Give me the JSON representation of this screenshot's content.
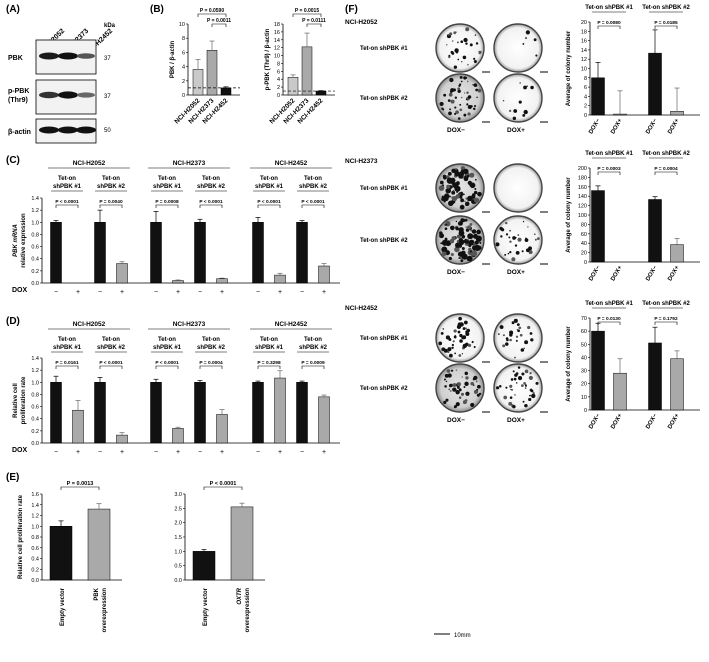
{
  "panels": {
    "A": {
      "label": "(A)",
      "kda": "kDa",
      "cell_lines": [
        "NCI-H2052",
        "NCI-H2373",
        "NCI-H2452"
      ],
      "rows": [
        {
          "label": "PBK",
          "kda": "37"
        },
        {
          "label": "p-PBK",
          "label2": "(Thr9)",
          "kda": "37"
        },
        {
          "label": "β-actin",
          "kda": "50"
        }
      ]
    },
    "B": {
      "label": "(B)"
    },
    "C": {
      "label": "(C)",
      "dox": "DOX",
      "minus": "−",
      "plus": "+"
    },
    "D": {
      "label": "(D)",
      "dox": "DOX",
      "minus": "−",
      "plus": "+"
    },
    "E": {
      "label": "(E)"
    },
    "F": {
      "label": "(F)",
      "scale": "10mm",
      "dox_minus": "DOX−",
      "dox_plus": "DOX+",
      "row_labels": [
        "Tet-on shPBK #1",
        "Tet-on shPBK #2"
      ],
      "cell_lines": [
        "NCI-H2052",
        "NCI-H2373",
        "NCI-H2452"
      ]
    }
  },
  "chart_data": [
    {
      "id": "B1",
      "type": "bar",
      "ylabel": "PBK / β-actin",
      "categories": [
        "NCI-H2052",
        "NCI-H2373",
        "NCI-H2452"
      ],
      "values": [
        3.6,
        6.3,
        1.0
      ],
      "errors": [
        1.4,
        1.3,
        0.15
      ],
      "ylim": [
        0,
        10
      ],
      "yticks": [
        0,
        2,
        4,
        6,
        8,
        10
      ],
      "colors": [
        "#c9c9c9",
        "#a9a9a9",
        "#111111"
      ],
      "reference_line": 1.0,
      "pvalues": [
        {
          "from": 0,
          "to": 2,
          "text": "P = 0.0590",
          "level": 2
        },
        {
          "from": 1,
          "to": 2,
          "text": "P = 0.0011",
          "level": 1
        }
      ]
    },
    {
      "id": "B2",
      "type": "bar",
      "ylabel": "p-PBK (Thr9) / β-actin",
      "categories": [
        "NCI-H2052",
        "NCI-H2373",
        "NCI-H2452"
      ],
      "values": [
        4.5,
        12.2,
        1.0
      ],
      "errors": [
        0.6,
        3.5,
        0.1
      ],
      "ylim": [
        0,
        18
      ],
      "yticks": [
        0,
        2,
        4,
        6,
        8,
        10,
        12,
        14,
        16,
        18
      ],
      "colors": [
        "#c9c9c9",
        "#a9a9a9",
        "#111111"
      ],
      "reference_line": 1.0,
      "pvalues": [
        {
          "from": 0,
          "to": 2,
          "text": "P = 0.0015",
          "level": 2
        },
        {
          "from": 1,
          "to": 2,
          "text": "P = 0.0111",
          "level": 1
        }
      ]
    },
    {
      "id": "C",
      "type": "bar",
      "ylabel": "PBK mRNA relative expression",
      "ylim": [
        0,
        1.4
      ],
      "yticks": [
        0,
        0.2,
        0.4,
        0.6,
        0.8,
        1.0,
        1.2,
        1.4
      ],
      "groups": [
        {
          "cell_line": "NCI-H2052",
          "shRNA": [
            "Tet-on shPBK #1",
            "Tet-on shPBK #2"
          ],
          "values": [
            1.0,
            0.0,
            1.0,
            0.32
          ],
          "errors": [
            0.03,
            0.0,
            0.2,
            0.03
          ],
          "pvalues": [
            "P < 0.0001",
            "P = 0.0040"
          ]
        },
        {
          "cell_line": "NCI-H2373",
          "shRNA": [
            "Tet-on shPBK #1",
            "Tet-on shPBK #2"
          ],
          "values": [
            1.0,
            0.04,
            1.0,
            0.07
          ],
          "errors": [
            0.18,
            0.01,
            0.05,
            0.01
          ],
          "pvalues": [
            "P = 0.0008",
            "P < 0.0001"
          ]
        },
        {
          "cell_line": "NCI-H2452",
          "shRNA": [
            "Tet-on shPBK #1",
            "Tet-on shPBK #2"
          ],
          "values": [
            1.0,
            0.13,
            1.0,
            0.28
          ],
          "errors": [
            0.08,
            0.03,
            0.03,
            0.04
          ],
          "pvalues": [
            "P < 0.0001",
            "P < 0.0001"
          ]
        }
      ]
    },
    {
      "id": "D",
      "type": "bar",
      "ylabel": "Relative cell proliferation rate",
      "ylim": [
        0,
        1.4
      ],
      "yticks": [
        0,
        0.2,
        0.4,
        0.6,
        0.8,
        1.0,
        1.2,
        1.4
      ],
      "groups": [
        {
          "cell_line": "NCI-H2052",
          "shRNA": [
            "Tet-on shPBK #1",
            "Tet-on shPBK #2"
          ],
          "values": [
            1.0,
            0.54,
            1.0,
            0.13
          ],
          "errors": [
            0.1,
            0.16,
            0.08,
            0.04
          ],
          "pvalues": [
            "P = 0.0161",
            "P < 0.0001"
          ]
        },
        {
          "cell_line": "NCI-H2373",
          "shRNA": [
            "Tet-on shPBK #1",
            "Tet-on shPBK #2"
          ],
          "values": [
            1.0,
            0.24,
            1.0,
            0.47
          ],
          "errors": [
            0.05,
            0.02,
            0.03,
            0.08
          ],
          "pvalues": [
            "P < 0.0001",
            "P = 0.0004"
          ]
        },
        {
          "cell_line": "NCI-H2452",
          "shRNA": [
            "Tet-on shPBK #1",
            "Tet-on shPBK #2"
          ],
          "values": [
            1.0,
            1.07,
            1.0,
            0.76
          ],
          "errors": [
            0.02,
            0.12,
            0.02,
            0.03
          ],
          "pvalues": [
            "P = 0.3298",
            "P = 0.0009"
          ]
        }
      ]
    },
    {
      "id": "E1",
      "type": "bar",
      "ylabel": "Relative cell proliferation rate",
      "categories": [
        "Empty vector",
        "PBK overexpression"
      ],
      "values": [
        1.0,
        1.32
      ],
      "errors": [
        0.1,
        0.1
      ],
      "colors": [
        "#111111",
        "#a9a9a9"
      ],
      "ylim": [
        0,
        1.6
      ],
      "yticks": [
        0,
        0.2,
        0.4,
        0.6,
        0.8,
        1.0,
        1.2,
        1.4,
        1.6
      ],
      "pvalue": "P = 0.0013"
    },
    {
      "id": "E2",
      "type": "bar",
      "categories": [
        "Empty vector",
        "OXTR overexpression"
      ],
      "values": [
        1.0,
        2.55
      ],
      "errors": [
        0.06,
        0.13
      ],
      "colors": [
        "#111111",
        "#a9a9a9"
      ],
      "ylim": [
        0,
        3.0
      ],
      "yticks": [
        0,
        0.5,
        1.0,
        1.5,
        2.0,
        2.5,
        3.0
      ],
      "pvalue": "P < 0.0001"
    },
    {
      "id": "F1",
      "type": "bar",
      "cell_line": "NCI-H2052",
      "ylabel": "Average of colony number",
      "ylim": [
        0,
        20
      ],
      "yticks": [
        0,
        2,
        4,
        6,
        8,
        10,
        12,
        14,
        16,
        18,
        20
      ],
      "shRNA": [
        "Tet-on shPBK #1",
        "Tet-on shPBK #2"
      ],
      "categories": [
        "DOX−",
        "DOX+",
        "DOX−",
        "DOX+"
      ],
      "values": [
        8.0,
        0.2,
        13.3,
        0.8
      ],
      "errors": [
        3.3,
        5.0,
        5.0,
        5.0
      ],
      "pvalues": [
        "P = 0.0080",
        "P = 0.0185"
      ]
    },
    {
      "id": "F2",
      "type": "bar",
      "cell_line": "NCI-H2373",
      "ylabel": "Average of colony number",
      "ylim": [
        0,
        200
      ],
      "yticks": [
        0,
        20,
        40,
        60,
        80,
        100,
        120,
        140,
        160,
        180,
        200
      ],
      "shRNA": [
        "Tet-on shPBK #1",
        "Tet-on shPBK #2"
      ],
      "categories": [
        "DOX−",
        "DOX+",
        "DOX−",
        "DOX+"
      ],
      "values": [
        152,
        0,
        133,
        37
      ],
      "errors": [
        10,
        0,
        6,
        13
      ],
      "pvalues": [
        "P = 0.0003",
        "P = 0.0004"
      ]
    },
    {
      "id": "F3",
      "type": "bar",
      "cell_line": "NCI-H2452",
      "ylabel": "Average of colony number",
      "ylim": [
        0,
        70
      ],
      "yticks": [
        0,
        10,
        20,
        30,
        40,
        50,
        60,
        70
      ],
      "shRNA": [
        "Tet-on shPBK #1",
        "Tet-on shPBK #2"
      ],
      "categories": [
        "DOX−",
        "DOX+",
        "DOX−",
        "DOX+"
      ],
      "values": [
        60,
        28,
        51,
        39
      ],
      "errors": [
        6,
        11,
        12,
        6
      ],
      "pvalues": [
        "P = 0.0130",
        "P = 0.1792"
      ]
    }
  ]
}
